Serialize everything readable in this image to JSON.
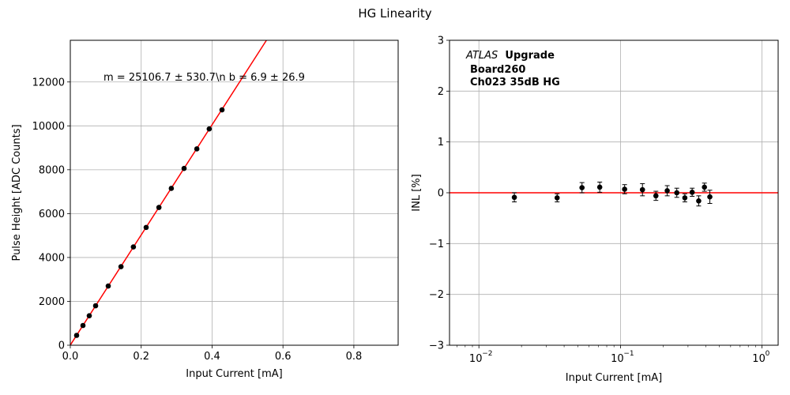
{
  "figure": {
    "suptitle": "HG Linearity"
  },
  "chart_data": [
    {
      "type": "scatter",
      "xlabel": "Input Current [mA]",
      "ylabel": "Pulse Height [ADC Counts]",
      "xlim": [
        0,
        0.925
      ],
      "ylim": [
        0,
        13900
      ],
      "x_ticks": [
        0,
        0.2,
        0.4,
        0.6,
        0.8
      ],
      "x_tick_labels": [
        "0.0",
        "0.2",
        "0.4",
        "0.6",
        "0.8"
      ],
      "y_ticks": [
        0,
        2000,
        4000,
        6000,
        8000,
        10000,
        12000
      ],
      "y_tick_labels": [
        "0",
        "2000",
        "4000",
        "6000",
        "8000",
        "10000",
        "12000"
      ],
      "grid": true,
      "annotation": "m = 25106.7 ± 530.7\\n b = 6.9 ± 26.9",
      "fit": {
        "slope": 25106.7,
        "intercept": 6.9,
        "color": "#ff0000"
      },
      "marker_color": "#000000",
      "points": {
        "x": [
          0.0178,
          0.0357,
          0.0535,
          0.0714,
          0.107,
          0.143,
          0.178,
          0.214,
          0.25,
          0.285,
          0.321,
          0.357,
          0.392,
          0.428
        ],
        "y": [
          450,
          900,
          1345,
          1800,
          2700,
          3580,
          4480,
          5370,
          6280,
          7150,
          8060,
          8950,
          9860,
          10730
        ]
      }
    },
    {
      "type": "scatter",
      "xlabel": "Input Current [mA]",
      "ylabel": "INL [%]",
      "xscale": "log",
      "xlim": [
        0.0062,
        1.3
      ],
      "ylim": [
        -3,
        3
      ],
      "x_ticks": [
        0.01,
        0.1,
        1
      ],
      "x_tick_labels": [
        "10",
        "10",
        "10"
      ],
      "x_tick_exponents": [
        "−2",
        "−1",
        "0"
      ],
      "y_ticks": [
        -3,
        -2,
        -1,
        0,
        1,
        2,
        3
      ],
      "y_tick_labels": [
        "−3",
        "−2",
        "−1",
        "0",
        "1",
        "2",
        "3"
      ],
      "grid": true,
      "zero_line_color": "#ff0000",
      "marker_color": "#000000",
      "label_italic": "ATLAS",
      "label_bold": "Upgrade",
      "label_lines": [
        "Board260",
        "Ch023 35dB HG"
      ],
      "points": {
        "x": [
          0.0178,
          0.0357,
          0.0535,
          0.0714,
          0.107,
          0.143,
          0.178,
          0.214,
          0.25,
          0.285,
          0.321,
          0.357,
          0.392,
          0.428
        ],
        "y": [
          -0.09,
          -0.1,
          0.1,
          0.11,
          0.07,
          0.06,
          -0.06,
          0.04,
          0.0,
          -0.1,
          0.01,
          -0.16,
          0.11,
          -0.08
        ],
        "yerr": [
          0.09,
          0.08,
          0.1,
          0.1,
          0.09,
          0.12,
          0.09,
          0.1,
          0.09,
          0.08,
          0.08,
          0.1,
          0.08,
          0.13
        ]
      }
    }
  ]
}
